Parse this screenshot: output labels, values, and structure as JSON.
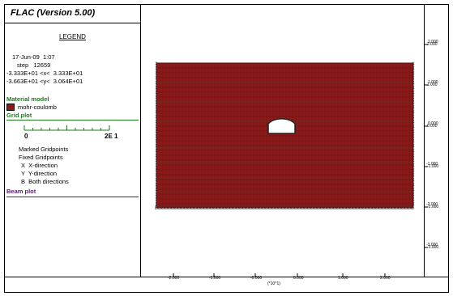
{
  "program_title": "FLAC (Version 5.00)",
  "legend": {
    "heading": "LEGEND",
    "date_line": "17-Jun-09  1:07",
    "step_line": "step   12659",
    "x_range_line": "-3.333E+01 <x<  3.333E+01",
    "y_range_line": "-3.663E+01 <y<  3.064E+01",
    "material_model_label": "Material model",
    "material_name": "mohr-coulomb",
    "material_color": "#8b1a1a",
    "grid_plot_label": "Grid plot",
    "scale_min": "0",
    "scale_max": "2E 1",
    "marked_gridpoints_label": "Marked Gridpoints",
    "fixed_gridpoints_label": "Fixed Gridpoints",
    "x_direction": "X  X-direction",
    "y_direction": "Y  Y-direction",
    "both_directions": "B  Both directions",
    "beam_plot_label": "Beam plot"
  },
  "right_axis_ticks": [
    "2.000",
    "1.000",
    "0.000",
    "-1.000",
    "-2.000",
    "-3.000"
  ],
  "bottom_axis_ticks": [
    "-2.000",
    "-1.000",
    "-0.000",
    "0.000",
    "1.000",
    "2.000"
  ],
  "bottom_axis_unit": "(*10^1)",
  "colors": {
    "mesh_fill": "#8b1a1a",
    "grid_green": "#1f7a1f",
    "beam_purple": "#5a1e6e",
    "fixed_marker": "#333333"
  }
}
